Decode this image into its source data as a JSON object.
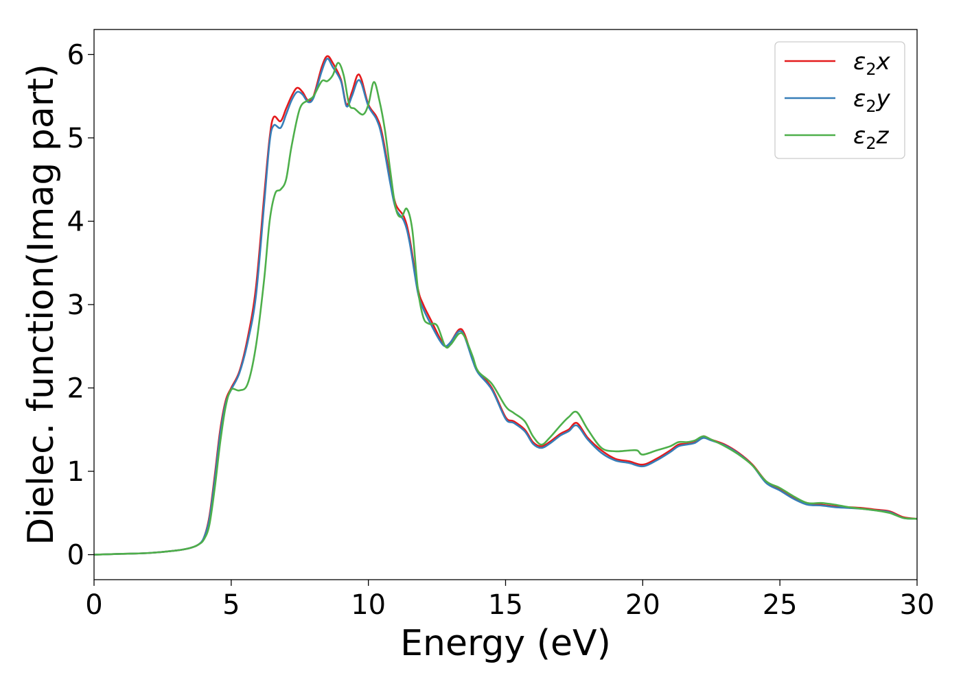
{
  "chart_data": {
    "type": "line",
    "title": "",
    "xlabel": "Energy (eV)",
    "ylabel": "Dielec. function(Imag part)",
    "xlim": [
      0,
      30
    ],
    "ylim": [
      -0.3,
      6.3
    ],
    "xticks": [
      "0",
      "5",
      "10",
      "15",
      "20",
      "25",
      "30"
    ],
    "yticks": [
      "0",
      "1",
      "2",
      "3",
      "4",
      "5",
      "6"
    ],
    "grid": false,
    "legend": {
      "placement": "top-right"
    },
    "series": [
      {
        "name": "ε₂x",
        "legend_base": "ε",
        "legend_sub": "2",
        "legend_var": "x",
        "color": "#e41a1c",
        "x": [
          0,
          1,
          2,
          3,
          3.5,
          3.8,
          4.0,
          4.2,
          4.4,
          4.6,
          4.8,
          5.0,
          5.3,
          5.6,
          5.9,
          6.2,
          6.4,
          6.55,
          6.8,
          7.0,
          7.2,
          7.4,
          7.6,
          7.8,
          8.0,
          8.3,
          8.5,
          8.7,
          9.0,
          9.2,
          9.4,
          9.6,
          9.75,
          10.0,
          10.3,
          10.5,
          10.8,
          11.0,
          11.3,
          11.5,
          11.8,
          12.0,
          12.3,
          12.6,
          12.8,
          13.0,
          13.3,
          13.5,
          13.8,
          14.0,
          14.5,
          15.0,
          15.3,
          15.7,
          16.0,
          16.3,
          16.6,
          17.0,
          17.3,
          17.6,
          18.0,
          18.5,
          19.0,
          19.5,
          20.0,
          20.5,
          21.0,
          21.3,
          21.6,
          21.9,
          22.2,
          22.5,
          23.0,
          23.5,
          24.0,
          24.5,
          25.0,
          25.5,
          26.0,
          26.5,
          27.0,
          27.5,
          28.0,
          28.5,
          29.0,
          29.5,
          30.0
        ],
        "y": [
          0.0,
          0.01,
          0.02,
          0.05,
          0.08,
          0.12,
          0.2,
          0.45,
          0.95,
          1.5,
          1.85,
          2.0,
          2.2,
          2.6,
          3.2,
          4.3,
          5.0,
          5.25,
          5.2,
          5.35,
          5.5,
          5.6,
          5.55,
          5.45,
          5.5,
          5.85,
          5.98,
          5.9,
          5.7,
          5.4,
          5.55,
          5.75,
          5.7,
          5.4,
          5.25,
          5.05,
          4.5,
          4.2,
          4.05,
          3.8,
          3.2,
          3.0,
          2.8,
          2.6,
          2.5,
          2.55,
          2.7,
          2.65,
          2.35,
          2.2,
          2.0,
          1.65,
          1.6,
          1.5,
          1.35,
          1.3,
          1.35,
          1.45,
          1.5,
          1.58,
          1.4,
          1.25,
          1.15,
          1.12,
          1.08,
          1.15,
          1.25,
          1.32,
          1.33,
          1.35,
          1.42,
          1.38,
          1.32,
          1.22,
          1.08,
          0.88,
          0.78,
          0.68,
          0.62,
          0.6,
          0.58,
          0.57,
          0.56,
          0.54,
          0.52,
          0.45,
          0.43
        ]
      },
      {
        "name": "ε₂y",
        "legend_base": "ε",
        "legend_sub": "2",
        "legend_var": "y",
        "color": "#377eb8",
        "x": [
          0,
          1,
          2,
          3,
          3.5,
          3.8,
          4.0,
          4.2,
          4.4,
          4.6,
          4.8,
          5.0,
          5.3,
          5.6,
          5.9,
          6.2,
          6.4,
          6.55,
          6.8,
          7.0,
          7.2,
          7.4,
          7.6,
          7.8,
          8.0,
          8.3,
          8.5,
          8.7,
          9.0,
          9.2,
          9.4,
          9.6,
          9.75,
          10.0,
          10.3,
          10.5,
          10.8,
          11.0,
          11.3,
          11.5,
          11.8,
          12.0,
          12.3,
          12.6,
          12.8,
          13.0,
          13.3,
          13.5,
          13.8,
          14.0,
          14.5,
          15.0,
          15.3,
          15.7,
          16.0,
          16.3,
          16.6,
          17.0,
          17.3,
          17.6,
          18.0,
          18.5,
          19.0,
          19.5,
          20.0,
          20.5,
          21.0,
          21.3,
          21.6,
          21.9,
          22.2,
          22.5,
          23.0,
          23.5,
          24.0,
          24.5,
          25.0,
          25.5,
          26.0,
          26.5,
          27.0,
          27.5,
          28.0,
          28.5,
          29.0,
          29.5,
          30.0
        ],
        "y": [
          0.0,
          0.01,
          0.02,
          0.05,
          0.08,
          0.12,
          0.2,
          0.42,
          0.9,
          1.45,
          1.82,
          1.98,
          2.18,
          2.55,
          3.1,
          4.2,
          4.95,
          5.15,
          5.12,
          5.28,
          5.45,
          5.55,
          5.52,
          5.43,
          5.48,
          5.8,
          5.95,
          5.85,
          5.68,
          5.38,
          5.5,
          5.68,
          5.65,
          5.38,
          5.22,
          5.0,
          4.45,
          4.15,
          4.0,
          3.75,
          3.15,
          2.95,
          2.75,
          2.57,
          2.5,
          2.55,
          2.68,
          2.62,
          2.33,
          2.18,
          1.98,
          1.63,
          1.58,
          1.48,
          1.33,
          1.28,
          1.33,
          1.43,
          1.48,
          1.55,
          1.38,
          1.22,
          1.13,
          1.1,
          1.06,
          1.13,
          1.23,
          1.3,
          1.32,
          1.34,
          1.4,
          1.37,
          1.31,
          1.21,
          1.07,
          0.86,
          0.77,
          0.67,
          0.6,
          0.59,
          0.57,
          0.56,
          0.55,
          0.53,
          0.51,
          0.44,
          0.43
        ]
      },
      {
        "name": "ε₂z",
        "legend_base": "ε",
        "legend_sub": "2",
        "legend_var": "z",
        "color": "#4daf4a",
        "x": [
          0,
          1,
          2,
          3,
          3.5,
          3.8,
          4.0,
          4.2,
          4.4,
          4.6,
          4.8,
          5.0,
          5.3,
          5.6,
          5.9,
          6.2,
          6.4,
          6.6,
          6.8,
          7.0,
          7.2,
          7.5,
          7.8,
          8.0,
          8.3,
          8.5,
          8.7,
          8.9,
          9.1,
          9.3,
          9.5,
          9.8,
          10.0,
          10.2,
          10.4,
          10.6,
          10.8,
          11.0,
          11.2,
          11.4,
          11.6,
          11.8,
          12.0,
          12.2,
          12.5,
          12.8,
          13.0,
          13.3,
          13.5,
          13.8,
          14.0,
          14.5,
          15.0,
          15.3,
          15.7,
          16.0,
          16.3,
          16.6,
          17.0,
          17.3,
          17.6,
          18.0,
          18.5,
          19.0,
          19.5,
          19.8,
          20.0,
          20.5,
          21.0,
          21.3,
          21.6,
          21.9,
          22.2,
          22.5,
          23.0,
          23.5,
          24.0,
          24.5,
          25.0,
          25.5,
          26.0,
          26.5,
          27.0,
          27.5,
          28.0,
          28.5,
          29.0,
          29.5,
          30.0
        ],
        "y": [
          0.0,
          0.01,
          0.02,
          0.05,
          0.08,
          0.12,
          0.18,
          0.35,
          0.8,
          1.35,
          1.78,
          1.98,
          1.97,
          2.05,
          2.5,
          3.3,
          4.0,
          4.33,
          4.38,
          4.5,
          4.9,
          5.35,
          5.45,
          5.5,
          5.68,
          5.68,
          5.75,
          5.9,
          5.75,
          5.4,
          5.35,
          5.28,
          5.4,
          5.67,
          5.45,
          5.1,
          4.6,
          4.15,
          4.05,
          4.15,
          3.9,
          3.2,
          2.85,
          2.77,
          2.75,
          2.5,
          2.52,
          2.65,
          2.62,
          2.38,
          2.2,
          2.05,
          1.78,
          1.7,
          1.6,
          1.42,
          1.32,
          1.4,
          1.55,
          1.65,
          1.71,
          1.5,
          1.28,
          1.24,
          1.25,
          1.25,
          1.2,
          1.25,
          1.3,
          1.35,
          1.35,
          1.37,
          1.42,
          1.38,
          1.3,
          1.2,
          1.07,
          0.88,
          0.8,
          0.7,
          0.62,
          0.62,
          0.6,
          0.57,
          0.55,
          0.53,
          0.5,
          0.44,
          0.43
        ]
      }
    ]
  }
}
